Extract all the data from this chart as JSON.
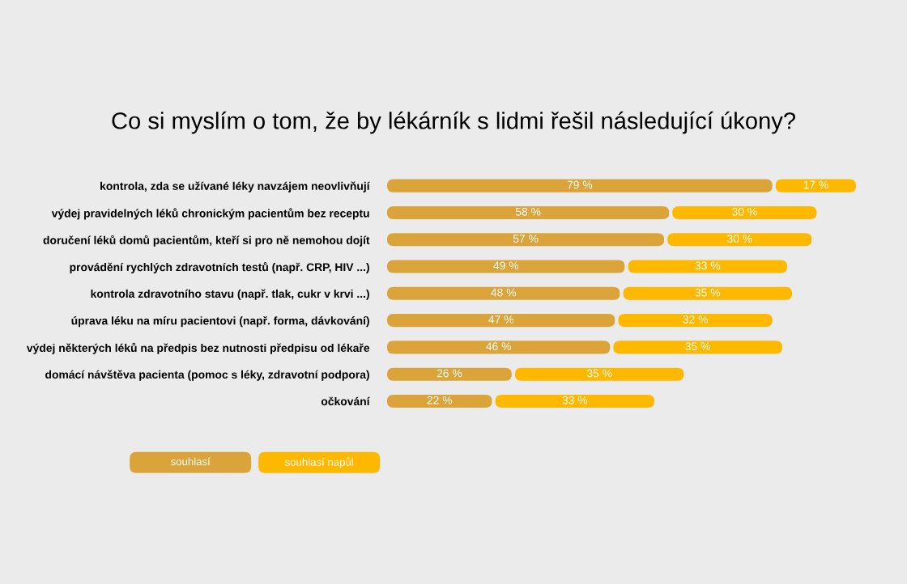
{
  "chart_data": {
    "type": "bar",
    "orientation": "horizontal",
    "stacked": true,
    "title": "Co si myslím o tom, že by lékárník s lidmi řešil následující úkony?",
    "categories": [
      "kontrola, zda se užívané léky navzájem neovlivňují",
      "výdej pravidelných léků chronickým pacientům bez receptu",
      "doručení léků domů pacientům, kteří si pro ně nemohou dojít",
      "provádění rychlých zdravotních testů (např. CRP, HIV ...)",
      "kontrola zdravotního stavu (např. tlak, cukr v krvi ...)",
      "úprava léku na míru pacientovi (např. forma, dávkování)",
      "výdej některých léků na předpis bez nutnosti předpisu od lékaře",
      "domácí návštěva pacienta (pomoc s léky, zdravotní podpora)",
      "očkování"
    ],
    "series": [
      {
        "name": "souhlasí",
        "color": "#dba43b",
        "values": [
          79,
          58,
          57,
          49,
          48,
          47,
          46,
          26,
          22
        ],
        "value_labels": [
          "79 %",
          "58 %",
          "57 %",
          "49 %",
          "48 %",
          "47 %",
          "46 %",
          "26 %",
          "22 %"
        ]
      },
      {
        "name": "souhlasí napůl",
        "color": "#ffb800",
        "values": [
          17,
          30,
          30,
          33,
          35,
          32,
          35,
          35,
          33
        ],
        "value_labels": [
          "17 %",
          "30 %",
          "30 %",
          "33 %",
          "35 %",
          "32 %",
          "35 %",
          "35 %",
          "33 %"
        ]
      }
    ],
    "legend": "bottom left"
  }
}
